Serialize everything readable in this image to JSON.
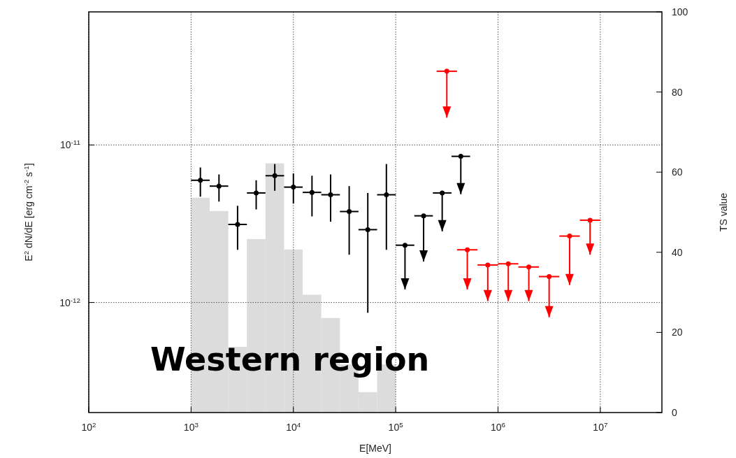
{
  "chart_data": {
    "type": "scatter",
    "xlabel": "E[MeV]",
    "ylabel": "E$^{2}$ dN/dE [erg cm$^{-2}$ s$^{-1}$]",
    "y2label": "TS value",
    "log": "xy",
    "grid": true,
    "marker": "circle",
    "xlim": [
      100,
      40000000
    ],
    "xticks": [
      {
        "value": 100,
        "label": "10$^{2}$"
      },
      {
        "value": 1000,
        "label": "10$^{3}$"
      },
      {
        "value": 10000,
        "label": "10$^{4}$"
      },
      {
        "value": 100000,
        "label": "10$^{5}$"
      },
      {
        "value": 1000000,
        "label": "10$^{6}$"
      },
      {
        "value": 10000000,
        "label": "10$^{7}$"
      }
    ],
    "ylim": [
      2e-13,
      7e-11
    ],
    "yticks": [
      {
        "value": 1e-12,
        "label": "10$^{-12}$"
      },
      {
        "value": 1e-11,
        "label": "10$^{-11}$"
      }
    ],
    "y2lim": [
      0,
      100
    ],
    "y2ticks": [
      0,
      20,
      40,
      60,
      80,
      100
    ],
    "annotations": [
      "Western region"
    ],
    "series": [
      {
        "type": "histogram",
        "axis": "y2",
        "color": "#dcdcdc",
        "bins": [
          1000,
          1520,
          2310,
          3511,
          5337,
          8111,
          12328,
          18738,
          28480,
          43288,
          65793,
          100000
        ],
        "values": [
          53.6,
          50.3,
          16.4,
          43.3,
          62.2,
          40.7,
          29.4,
          23.6,
          12,
          5.1,
          12
        ]
      },
      {
        "color": "#000000",
        "x": [
          1233,
          1874,
          2848,
          4329,
          6579,
          10000,
          15199,
          23101,
          35111,
          53367,
          81113
        ],
        "values": [
          5.97e-12,
          5.48e-12,
          3.13e-12,
          4.96e-12,
          6.38e-12,
          5.4e-12,
          5e-12,
          4.83e-12,
          3.78e-12,
          2.9e-12,
          4.83e-12
        ],
        "errors": [
          [
            4.7e-12,
            7.2e-12
          ],
          [
            4.37e-12,
            6.5e-12
          ],
          [
            2.16e-12,
            4.11e-12
          ],
          [
            3.9e-12,
            5.97e-12
          ],
          [
            5.12e-12,
            7.57e-12
          ],
          [
            4.25e-12,
            6.6e-12
          ],
          [
            3.52e-12,
            6.38e-12
          ],
          [
            3.26e-12,
            6.5e-12
          ],
          [
            2.01e-12,
            5.48e-12
          ],
          [
            8.6e-13,
            4.96e-12
          ],
          [
            2.16e-12,
            7.57e-12
          ]
        ],
        "xerrors": [
          [
            1000,
            1520
          ],
          [
            1520,
            2310
          ],
          [
            2310,
            3511
          ],
          [
            3511,
            5337
          ],
          [
            5337,
            8111
          ],
          [
            8111,
            12328
          ],
          [
            12328,
            18738
          ],
          [
            18738,
            28480
          ],
          [
            28480,
            43288
          ],
          [
            43288,
            65793
          ],
          [
            65793,
            100000
          ]
        ]
      },
      {
        "color": "#000000",
        "x": [
          123300,
          187400,
          284800,
          432900
        ],
        "values": [
          2.31e-12,
          3.55e-12,
          4.96e-12,
          8.47e-12
        ],
        "errors": [
          [
            1.21e-12,
            2.31e-12
          ],
          [
            1.82e-12,
            3.55e-12
          ],
          [
            2.83e-12,
            4.96e-12
          ],
          [
            4.87e-12,
            8.47e-12
          ]
        ],
        "xerrors": [
          [
            100000,
            152000
          ],
          [
            152000,
            231000
          ],
          [
            231000,
            351100
          ],
          [
            351100,
            533700
          ]
        ]
      },
      {
        "color": "#ff0000",
        "x": [
          316000,
          501000,
          794000,
          1260000,
          2000000,
          3160000,
          5010000,
          7940000
        ],
        "values": [
          2.94e-11,
          2.16e-12,
          1.73e-12,
          1.76e-12,
          1.68e-12,
          1.46e-12,
          2.64e-12,
          3.33e-12
        ],
        "errors": [
          [
            1.49e-11,
            2.94e-11
          ],
          [
            1.21e-12,
            2.16e-12
          ],
          [
            1.02e-12,
            1.73e-12
          ],
          [
            1.02e-12,
            1.76e-12
          ],
          [
            1.02e-12,
            1.68e-12
          ],
          [
            8.05e-13,
            1.46e-12
          ],
          [
            1.29e-12,
            2.64e-12
          ],
          [
            2.01e-12,
            3.33e-12
          ]
        ],
        "xerrors": [
          [
            251000,
            398000
          ],
          [
            398000,
            631000
          ],
          [
            631000,
            1000000
          ],
          [
            1000000,
            1580000
          ],
          [
            1580000,
            2510000
          ],
          [
            2510000,
            3980000
          ],
          [
            3980000,
            6310000
          ],
          [
            6310000,
            10000000
          ]
        ]
      }
    ]
  }
}
